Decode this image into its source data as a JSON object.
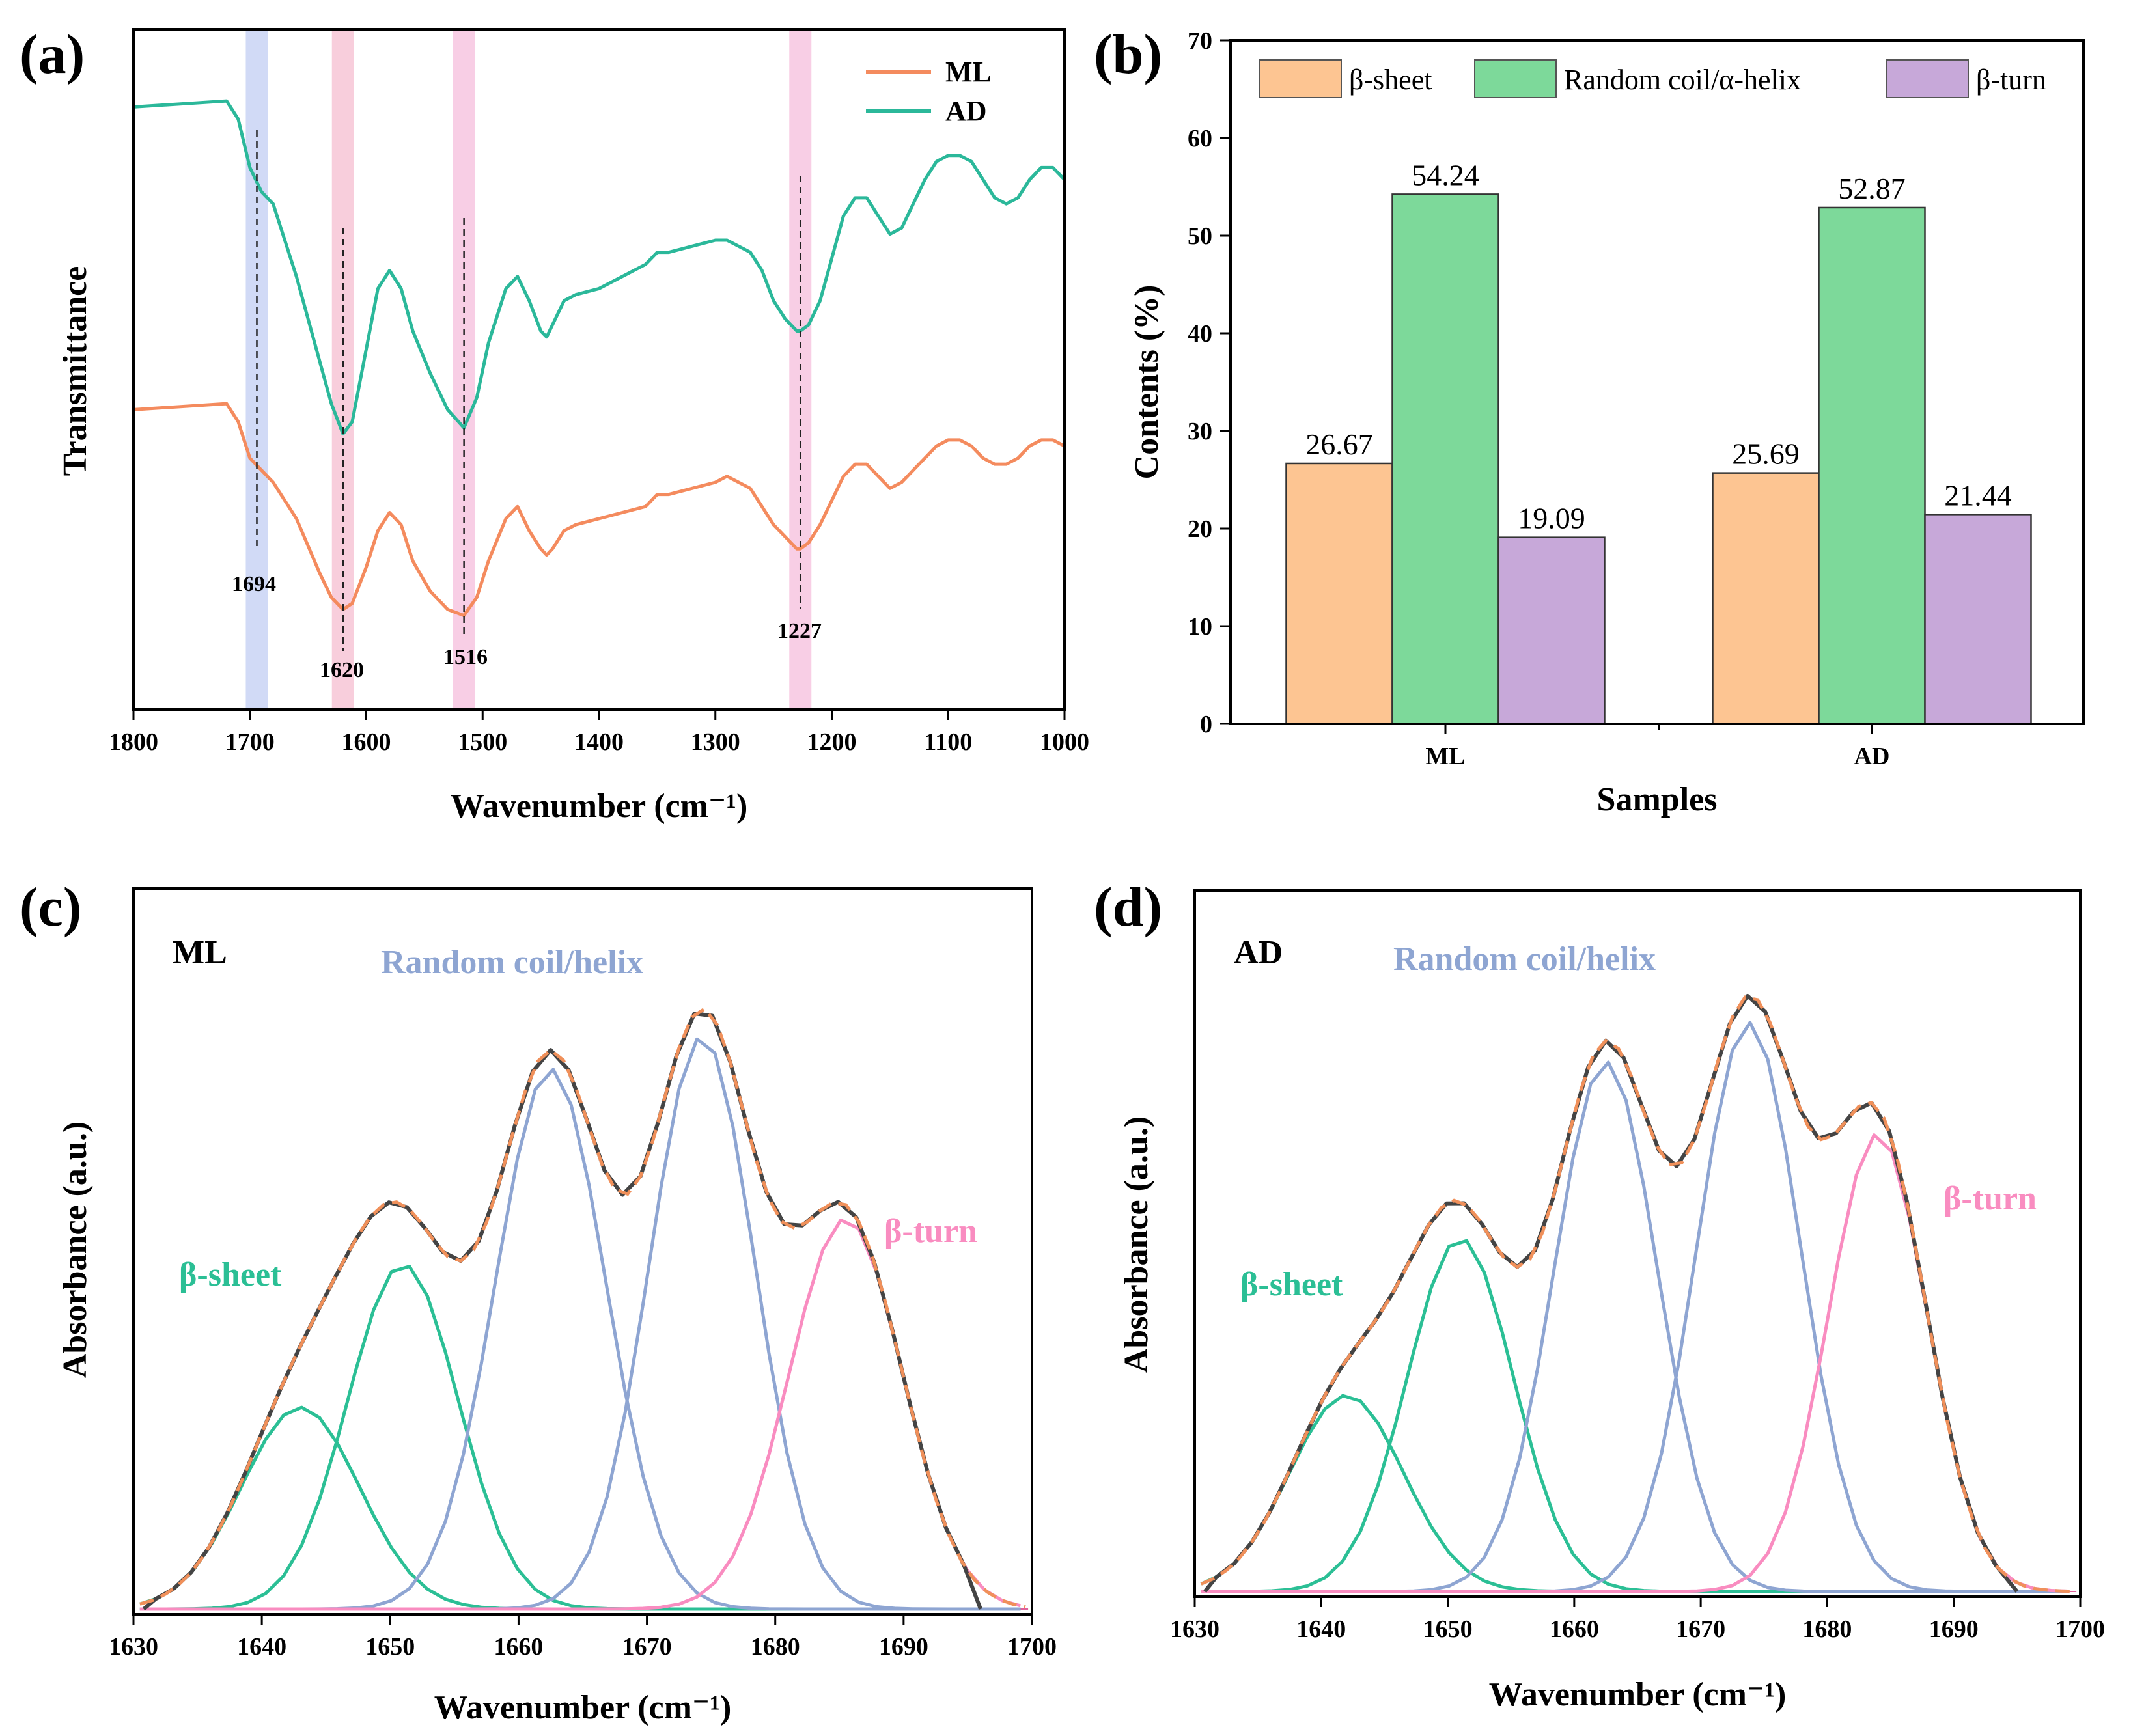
{
  "panel_labels": [
    "(a)",
    "(b)",
    "(c)",
    "(d)"
  ],
  "chart_data": [
    {
      "id": "a",
      "type": "line",
      "xlabel": "Wavenumber (cm⁻¹)",
      "ylabel": "Transmittance",
      "xlim": [
        1800,
        1000
      ],
      "xticks": [
        "1800",
        "1700",
        "1600",
        "1500",
        "1400",
        "1300",
        "1200",
        "1100",
        "1000"
      ],
      "legend": [
        {
          "name": "ML",
          "color": "#f48b5e"
        },
        {
          "name": "AD",
          "color": "#2bb89a"
        }
      ],
      "highlight_bands": [
        {
          "center": 1694,
          "color": "#c9d4f5"
        },
        {
          "center": 1620,
          "color": "#f7c6d6"
        },
        {
          "center": 1516,
          "color": "#f7c6e0"
        },
        {
          "center": 1227,
          "color": "#f7c6e0"
        }
      ],
      "peak_labels": [
        "1694",
        "1620",
        "1516",
        "1227"
      ],
      "series": [
        {
          "name": "AD",
          "color": "#2bb89a",
          "x": [
            1800,
            1720,
            1710,
            1700,
            1690,
            1680,
            1660,
            1640,
            1630,
            1620,
            1612,
            1600,
            1590,
            1580,
            1570,
            1560,
            1545,
            1530,
            1516,
            1505,
            1495,
            1480,
            1470,
            1460,
            1450,
            1445,
            1440,
            1430,
            1420,
            1400,
            1380,
            1360,
            1350,
            1340,
            1320,
            1300,
            1290,
            1280,
            1270,
            1260,
            1250,
            1240,
            1230,
            1227,
            1220,
            1210,
            1200,
            1190,
            1180,
            1170,
            1160,
            1150,
            1140,
            1130,
            1120,
            1110,
            1100,
            1090,
            1080,
            1070,
            1060,
            1050,
            1040,
            1030,
            1020,
            1010,
            1000
          ],
          "y": [
            0.92,
            0.93,
            0.9,
            0.82,
            0.78,
            0.76,
            0.64,
            0.5,
            0.43,
            0.38,
            0.4,
            0.52,
            0.62,
            0.65,
            0.62,
            0.55,
            0.48,
            0.42,
            0.39,
            0.44,
            0.53,
            0.62,
            0.64,
            0.6,
            0.55,
            0.54,
            0.56,
            0.6,
            0.61,
            0.62,
            0.64,
            0.66,
            0.68,
            0.68,
            0.69,
            0.7,
            0.7,
            0.69,
            0.68,
            0.65,
            0.6,
            0.57,
            0.55,
            0.55,
            0.56,
            0.6,
            0.67,
            0.74,
            0.77,
            0.77,
            0.74,
            0.71,
            0.72,
            0.76,
            0.8,
            0.83,
            0.84,
            0.84,
            0.83,
            0.8,
            0.77,
            0.76,
            0.77,
            0.8,
            0.82,
            0.82,
            0.8
          ]
        },
        {
          "name": "ML",
          "color": "#f48b5e",
          "x": [
            1800,
            1720,
            1710,
            1700,
            1690,
            1680,
            1660,
            1640,
            1630,
            1620,
            1612,
            1600,
            1590,
            1580,
            1570,
            1560,
            1545,
            1530,
            1516,
            1505,
            1495,
            1480,
            1470,
            1460,
            1450,
            1445,
            1440,
            1430,
            1420,
            1400,
            1380,
            1360,
            1350,
            1340,
            1320,
            1300,
            1290,
            1280,
            1270,
            1260,
            1250,
            1240,
            1230,
            1227,
            1220,
            1210,
            1200,
            1190,
            1180,
            1170,
            1160,
            1150,
            1140,
            1130,
            1120,
            1110,
            1100,
            1090,
            1080,
            1070,
            1060,
            1050,
            1040,
            1030,
            1020,
            1010,
            1000
          ],
          "y": [
            0.42,
            0.43,
            0.4,
            0.34,
            0.32,
            0.3,
            0.24,
            0.15,
            0.11,
            0.09,
            0.1,
            0.16,
            0.22,
            0.25,
            0.23,
            0.17,
            0.12,
            0.09,
            0.08,
            0.11,
            0.17,
            0.24,
            0.26,
            0.22,
            0.19,
            0.18,
            0.19,
            0.22,
            0.23,
            0.24,
            0.25,
            0.26,
            0.28,
            0.28,
            0.29,
            0.3,
            0.31,
            0.3,
            0.29,
            0.26,
            0.23,
            0.21,
            0.19,
            0.19,
            0.2,
            0.23,
            0.27,
            0.31,
            0.33,
            0.33,
            0.31,
            0.29,
            0.3,
            0.32,
            0.34,
            0.36,
            0.37,
            0.37,
            0.36,
            0.34,
            0.33,
            0.33,
            0.34,
            0.36,
            0.37,
            0.37,
            0.36
          ]
        }
      ]
    },
    {
      "id": "b",
      "type": "bar",
      "xlabel": "Samples",
      "ylabel": "Contents (%)",
      "ylim": [
        0,
        70
      ],
      "yticks": [
        "0",
        "10",
        "20",
        "30",
        "40",
        "50",
        "60",
        "70"
      ],
      "categories": [
        "ML",
        "AD"
      ],
      "series": [
        {
          "name": "β-sheet",
          "color": "#fdc592",
          "values": [
            26.67,
            25.69
          ],
          "labels": [
            "26.67",
            "25.69"
          ]
        },
        {
          "name": "Random coil/α-helix",
          "color": "#7dd99a",
          "values": [
            54.24,
            52.87
          ],
          "labels": [
            "54.24",
            "52.87"
          ]
        },
        {
          "name": "β-turn",
          "color": "#c7a8d9",
          "values": [
            19.09,
            21.44
          ],
          "labels": [
            "19.09",
            "21.44"
          ]
        }
      ]
    },
    {
      "id": "c",
      "type": "line",
      "sample": "ML",
      "xlabel": "Wavenumber (cm⁻¹)",
      "ylabel": "Absorbance (a.u.)",
      "xlim": [
        1630,
        1700
      ],
      "xticks": [
        "1630",
        "1640",
        "1650",
        "1660",
        "1670",
        "1680",
        "1690",
        "1700"
      ],
      "component_labels": {
        "beta_sheet": "β-sheet",
        "random_coil": "Random coil/helix",
        "beta_turn": "β-turn"
      },
      "colors": {
        "beta_sheet": "#2bbf95",
        "random_coil": "#8ea5d2",
        "beta_turn": "#f98cc0",
        "fit": "#f0905a",
        "raw": "#444444"
      },
      "components": [
        {
          "class": "beta_sheet",
          "center": 1643,
          "height": 0.31,
          "width": 4.6
        },
        {
          "class": "beta_sheet",
          "center": 1651,
          "height": 0.53,
          "width": 4.3
        },
        {
          "class": "random_coil",
          "center": 1662.5,
          "height": 0.83,
          "width": 4.3
        },
        {
          "class": "random_coil",
          "center": 1674.3,
          "height": 0.88,
          "width": 4.1
        },
        {
          "class": "beta_turn",
          "center": 1685.5,
          "height": 0.6,
          "width": 4.4
        }
      ],
      "raw_end": 1696
    },
    {
      "id": "d",
      "type": "line",
      "sample": "AD",
      "xlabel": "Wavenumber (cm⁻¹)",
      "ylabel": "Absorbance (a.u.)",
      "xlim": [
        1630,
        1700
      ],
      "xticks": [
        "1630",
        "1640",
        "1650",
        "1660",
        "1670",
        "1680",
        "1690",
        "1700"
      ],
      "component_labels": {
        "beta_sheet": "β-sheet",
        "random_coil": "Random coil/helix",
        "beta_turn": "β-turn"
      },
      "colors": {
        "beta_sheet": "#2bbf95",
        "random_coil": "#8ea5d2",
        "beta_turn": "#f98cc0",
        "fit": "#f0905a",
        "raw": "#444444"
      },
      "components": [
        {
          "class": "beta_sheet",
          "center": 1642,
          "height": 0.3,
          "width": 4.5
        },
        {
          "class": "beta_sheet",
          "center": 1651,
          "height": 0.54,
          "width": 4.2
        },
        {
          "class": "random_coil",
          "center": 1662.5,
          "height": 0.81,
          "width": 4.1
        },
        {
          "class": "random_coil",
          "center": 1673.8,
          "height": 0.87,
          "width": 4.1
        },
        {
          "class": "beta_turn",
          "center": 1684,
          "height": 0.7,
          "width": 3.9
        }
      ],
      "raw_end": 1695
    }
  ]
}
